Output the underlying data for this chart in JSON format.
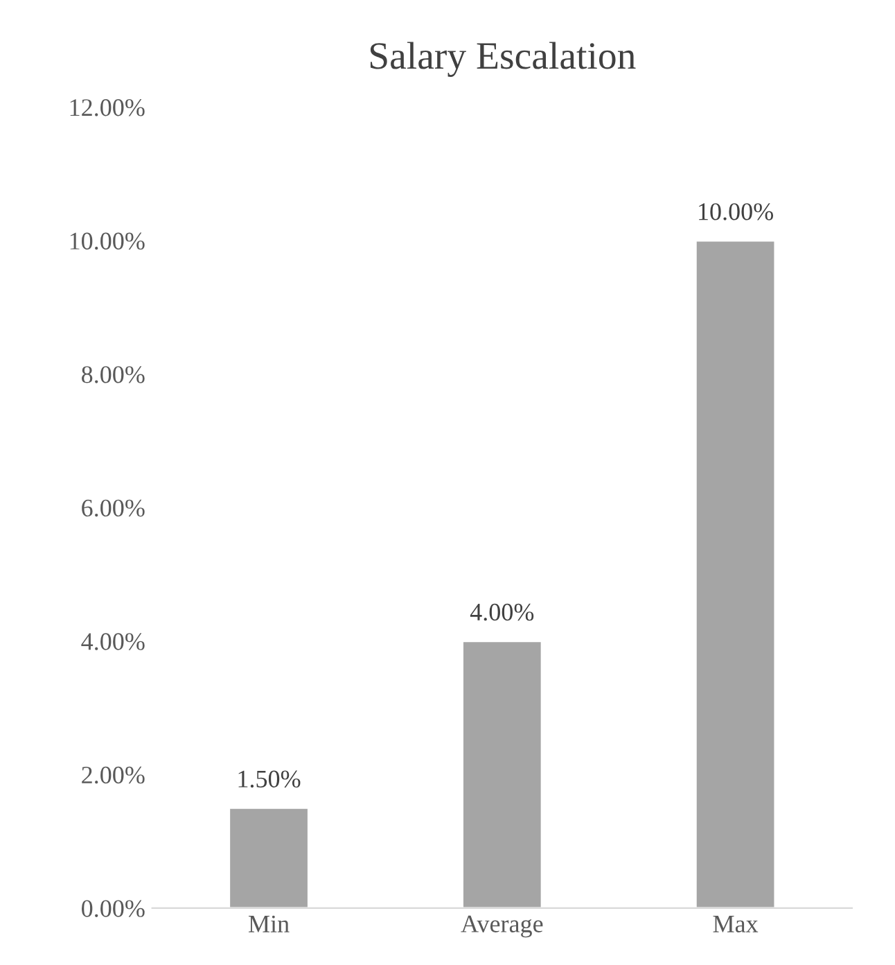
{
  "chart_data": {
    "type": "bar",
    "title": "Salary Escalation",
    "categories": [
      "Min",
      "Average",
      "Max"
    ],
    "values": [
      1.5,
      4,
      10
    ],
    "color": "#a5a5a5",
    "value_labels": [
      "1.50%",
      "4.00%",
      "10.00%"
    ],
    "ylim": [
      0,
      12
    ],
    "yticks": [
      {
        "value": 0,
        "label": "0.00%"
      },
      {
        "value": 2,
        "label": "2.00%"
      },
      {
        "value": 4,
        "label": "4.00%"
      },
      {
        "value": 6,
        "label": "6.00%"
      },
      {
        "value": 8,
        "label": "8.00%"
      },
      {
        "value": 10,
        "label": "10.00%"
      },
      {
        "value": 12,
        "label": "12.00%"
      }
    ],
    "grid": false,
    "legend": false
  }
}
